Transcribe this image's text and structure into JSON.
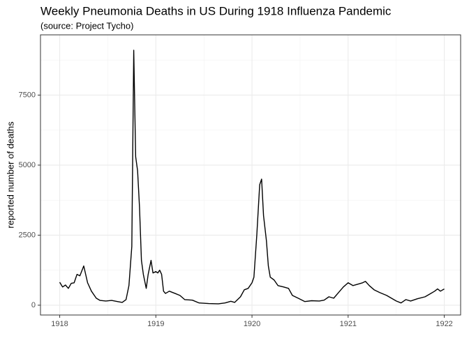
{
  "chart_data": {
    "type": "line",
    "title": "Weekly Pneumonia Deaths in US During 1918 Influenza Pandemic",
    "subtitle": "(source: Project Tycho)",
    "y_label": "reported number of deaths",
    "series": [
      {
        "color": "#000000",
        "x": [
          1918.0,
          1918.03,
          1918.06,
          1918.09,
          1918.12,
          1918.15,
          1918.18,
          1918.21,
          1918.25,
          1918.29,
          1918.33,
          1918.38,
          1918.42,
          1918.48,
          1918.54,
          1918.6,
          1918.65,
          1918.69,
          1918.72,
          1918.75,
          1918.77,
          1918.79,
          1918.81,
          1918.83,
          1918.85,
          1918.87,
          1918.9,
          1918.92,
          1918.95,
          1918.97,
          1919.0,
          1919.02,
          1919.04,
          1919.06,
          1919.08,
          1919.1,
          1919.14,
          1919.2,
          1919.25,
          1919.3,
          1919.38,
          1919.45,
          1919.55,
          1919.65,
          1919.72,
          1919.78,
          1919.82,
          1919.88,
          1919.92,
          1919.96,
          1920.0,
          1920.02,
          1920.05,
          1920.08,
          1920.1,
          1920.12,
          1920.15,
          1920.17,
          1920.19,
          1920.23,
          1920.27,
          1920.33,
          1920.38,
          1920.42,
          1920.48,
          1920.55,
          1920.62,
          1920.7,
          1920.75,
          1920.8,
          1920.85,
          1920.9,
          1920.95,
          1921.0,
          1921.05,
          1921.1,
          1921.15,
          1921.18,
          1921.22,
          1921.27,
          1921.33,
          1921.4,
          1921.45,
          1921.5,
          1921.55,
          1921.6,
          1921.65,
          1921.72,
          1921.8,
          1921.85,
          1921.9,
          1921.93,
          1921.96,
          1922.0
        ],
        "values": [
          820,
          650,
          720,
          600,
          780,
          800,
          1100,
          1050,
          1400,
          800,
          500,
          250,
          170,
          150,
          170,
          130,
          100,
          200,
          700,
          2100,
          9100,
          5300,
          4800,
          3500,
          1600,
          1100,
          600,
          1100,
          1600,
          1150,
          1200,
          1150,
          1250,
          1100,
          500,
          420,
          500,
          420,
          350,
          200,
          180,
          80,
          60,
          50,
          80,
          140,
          100,
          300,
          550,
          600,
          800,
          1000,
          2500,
          4300,
          4500,
          3200,
          2300,
          1400,
          1000,
          900,
          700,
          650,
          600,
          350,
          250,
          130,
          160,
          150,
          180,
          300,
          250,
          450,
          650,
          800,
          700,
          750,
          800,
          850,
          700,
          550,
          450,
          350,
          250,
          150,
          80,
          200,
          150,
          230,
          300,
          400,
          500,
          580,
          500,
          580
        ]
      }
    ],
    "xlim": [
      1917.8,
      1922.17
    ],
    "xticks": [
      1918,
      1919,
      1920,
      1921,
      1922
    ],
    "xminor": [
      1918.5,
      1919.5,
      1920.5,
      1921.5
    ],
    "ylim": [
      -350,
      9650
    ],
    "yticks": [
      0,
      2500,
      5000,
      7500
    ],
    "yminor": [
      1250,
      3750,
      6250,
      8750
    ],
    "grid": true
  }
}
